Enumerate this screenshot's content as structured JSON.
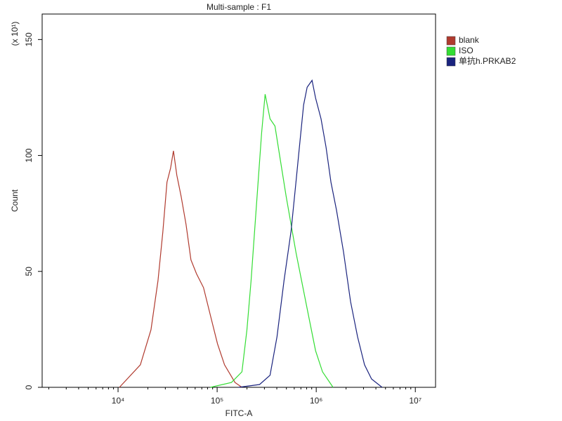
{
  "chart_data": {
    "type": "line",
    "title": "Multi-sample : F1",
    "x_label": "FITC-A",
    "y_label": "Count",
    "y_multiplier": "(x 10¹)",
    "xscale": "log",
    "xlim": [
      1714,
      16000000
    ],
    "ylim": [
      0,
      161
    ],
    "xticks": [
      {
        "value": 10000,
        "label": "10⁴"
      },
      {
        "value": 100000,
        "label": "10⁵"
      },
      {
        "value": 1000000,
        "label": "10⁶"
      },
      {
        "value": 10000000,
        "label": "10⁷"
      }
    ],
    "yticks": [
      0,
      50,
      100,
      150
    ],
    "series": [
      {
        "name": "blank",
        "color": "#b03a2e",
        "x": [
          10330,
          16800,
          21500,
          25300,
          28300,
          31200,
          33900,
          36200,
          39200,
          43300,
          48500,
          54400,
          61900,
          72800,
          85700,
          100900,
          118700,
          151500,
          178000
        ],
        "values": [
          0,
          9.7,
          24.8,
          46,
          67,
          88.5,
          94.5,
          102,
          91.5,
          82.4,
          70.3,
          55,
          49,
          43,
          30.9,
          18.8,
          9.7,
          2.1,
          0
        ]
      },
      {
        "name": "ISO",
        "color": "#33dd33",
        "x": [
          85700,
          139600,
          178000,
          199700,
          220000,
          238800,
          259000,
          281000,
          305000,
          342000,
          383000,
          436000,
          497000,
          557000,
          624000,
          711000,
          836000,
          984000,
          1158000,
          1479000
        ],
        "values": [
          0,
          2.1,
          6.7,
          24.8,
          46,
          67.3,
          88.5,
          109.7,
          126.4,
          115.8,
          112.7,
          97.6,
          82.4,
          70.3,
          58.2,
          46,
          30.9,
          15.8,
          6.7,
          0
        ]
      },
      {
        "name": "单抗h.PRKAB2",
        "color": "#1a237e",
        "x": [
          164000,
          268000,
          342000,
          402000,
          473000,
          557000,
          624000,
          687000,
          746000,
          809000,
          907000,
          984000,
          1119000,
          1256000,
          1407000,
          1602000,
          1887000,
          2220000,
          2612000,
          3073000,
          3617000,
          4617000
        ],
        "values": [
          0,
          1.2,
          5.2,
          21.8,
          46,
          67.3,
          88.5,
          106.7,
          121.8,
          129.4,
          132.4,
          124.8,
          115.8,
          103.6,
          88.5,
          76.4,
          58.2,
          37,
          21.8,
          9.7,
          3.6,
          0
        ]
      }
    ]
  }
}
